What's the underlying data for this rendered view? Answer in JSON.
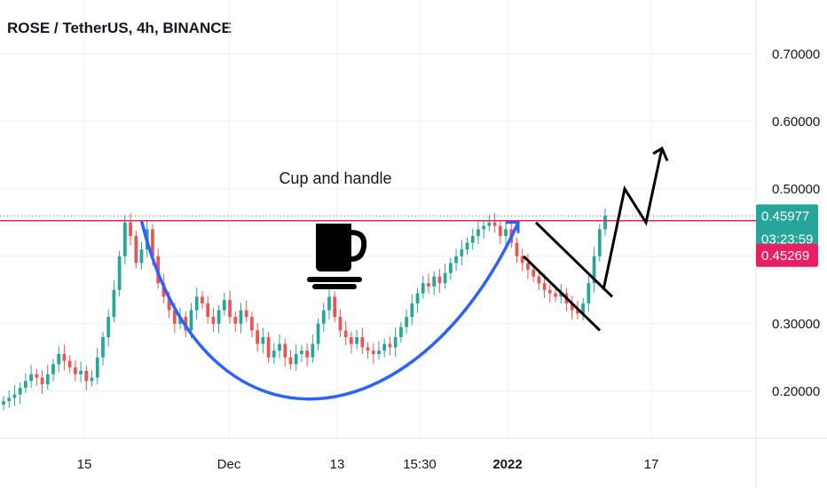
{
  "chart_data": {
    "type": "candlestick",
    "title": "ROSE / TetherUS, 4h, BINANCE",
    "ylim": [
      0.13,
      0.78
    ],
    "y_ticks": [
      "0.70000",
      "0.60000",
      "0.50000",
      "0.30000",
      "0.20000"
    ],
    "y_tick_values": [
      0.7,
      0.6,
      0.5,
      0.3,
      0.2
    ],
    "x_ticks": [
      "15",
      "Dec",
      "13",
      "15:30",
      "2022",
      "17"
    ],
    "x_tick_bold": [
      false,
      false,
      false,
      false,
      true,
      false
    ],
    "last_price": {
      "label": "0.45977",
      "value": 0.45977,
      "color": "#26a69a"
    },
    "countdown": {
      "label": "03:23:59",
      "color": "#26a69a"
    },
    "alert_line": {
      "label": "0.45269",
      "value": 0.45269,
      "color": "#e91e63"
    },
    "grid": true,
    "annotation_text": "Cup and handle",
    "up_color": "#26a69a",
    "down_color": "#ef5350",
    "cup_color": "#2962ff",
    "drawing_color": "#000000",
    "close_series": [
      0.185,
      0.19,
      0.195,
      0.205,
      0.215,
      0.225,
      0.22,
      0.21,
      0.225,
      0.24,
      0.255,
      0.245,
      0.235,
      0.225,
      0.23,
      0.215,
      0.22,
      0.25,
      0.28,
      0.31,
      0.35,
      0.4,
      0.45,
      0.43,
      0.39,
      0.41,
      0.44,
      0.4,
      0.36,
      0.34,
      0.32,
      0.3,
      0.31,
      0.29,
      0.32,
      0.34,
      0.33,
      0.31,
      0.3,
      0.32,
      0.335,
      0.31,
      0.3,
      0.32,
      0.31,
      0.29,
      0.27,
      0.28,
      0.25,
      0.26,
      0.27,
      0.25,
      0.24,
      0.255,
      0.26,
      0.25,
      0.27,
      0.3,
      0.32,
      0.34,
      0.31,
      0.29,
      0.28,
      0.27,
      0.28,
      0.265,
      0.26,
      0.255,
      0.26,
      0.27,
      0.265,
      0.28,
      0.295,
      0.31,
      0.33,
      0.345,
      0.36,
      0.355,
      0.37,
      0.36,
      0.375,
      0.39,
      0.4,
      0.41,
      0.42,
      0.43,
      0.44,
      0.445,
      0.45,
      0.445,
      0.43,
      0.44,
      0.42,
      0.4,
      0.39,
      0.38,
      0.37,
      0.36,
      0.35,
      0.345,
      0.34,
      0.345,
      0.33,
      0.32,
      0.315,
      0.33,
      0.36,
      0.4,
      0.44,
      0.46
    ]
  }
}
